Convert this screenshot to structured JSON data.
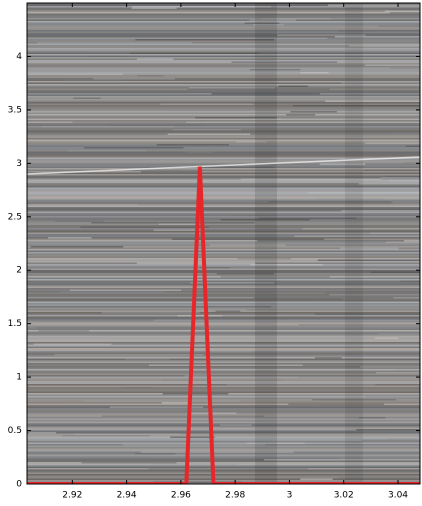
{
  "chart_data": {
    "type": "line",
    "x": [
      2.9033,
      2.962,
      2.967,
      2.972,
      3.048
    ],
    "series": [
      {
        "color": "#e8262a",
        "values": [
          0,
          0,
          2.97,
          0,
          0
        ]
      }
    ],
    "xlim": [
      2.9033,
      3.0481
    ],
    "ylim": [
      0,
      4.5
    ],
    "xticks": [
      2.92,
      2.94,
      2.96,
      2.98,
      3,
      3.02,
      3.04
    ],
    "yticks": [
      0,
      0.5,
      1,
      1.5,
      2,
      2.5,
      3,
      3.5,
      4
    ]
  }
}
